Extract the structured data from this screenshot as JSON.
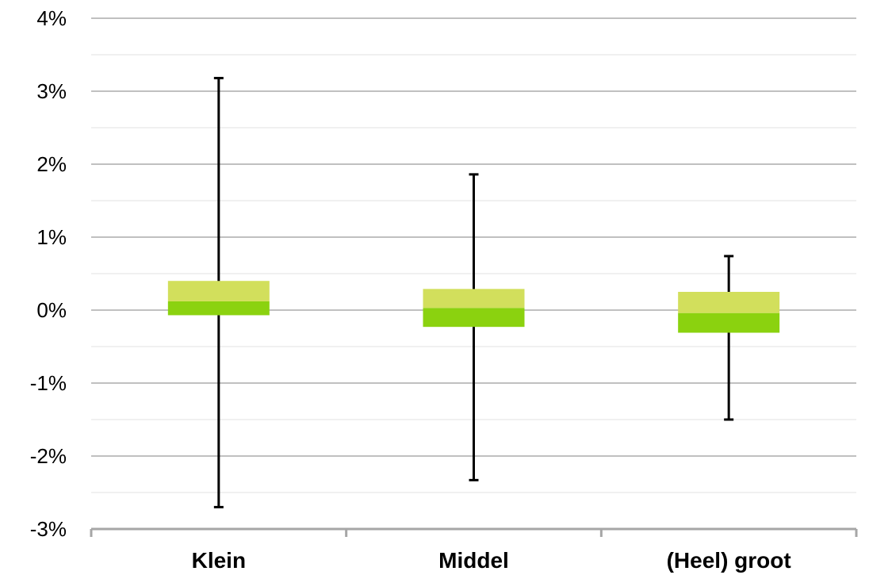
{
  "chart_data": {
    "type": "box",
    "categories": [
      "Klein",
      "Middel",
      "(Heel) groot"
    ],
    "boxes": [
      {
        "category": "Klein",
        "min": -2.7,
        "q1": -0.07,
        "median": 0.12,
        "q3": 0.4,
        "max": 3.18
      },
      {
        "category": "Middel",
        "min": -2.33,
        "q1": -0.23,
        "median": 0.03,
        "q3": 0.29,
        "max": 1.86
      },
      {
        "category": "(Heel) groot",
        "min": -1.5,
        "q1": -0.31,
        "median": -0.04,
        "q3": 0.25,
        "max": 0.74
      }
    ],
    "ylim": [
      -3,
      4
    ],
    "yticks": [
      {
        "value": 4,
        "label": "4%"
      },
      {
        "value": 3,
        "label": "3%"
      },
      {
        "value": 2,
        "label": "2%"
      },
      {
        "value": 1,
        "label": "1%"
      },
      {
        "value": 0,
        "label": "0%"
      },
      {
        "value": -1,
        "label": "-1%"
      },
      {
        "value": -2,
        "label": "-2%"
      },
      {
        "value": -3,
        "label": "-3%"
      }
    ],
    "minor_gridlines": [
      3.5,
      2.5,
      1.5,
      0.5,
      -0.5,
      -1.5,
      -2.5
    ],
    "grid": true,
    "legend": "none",
    "title": "",
    "xlabel": "",
    "ylabel": "",
    "colors": {
      "upper_box": "#d2df5c",
      "lower_box": "#8bd20f",
      "whisker": "#000000",
      "gridline": "#9a9a9a",
      "minor_gridline": "#e0e0e0",
      "axis": "#a6a6a6"
    }
  }
}
